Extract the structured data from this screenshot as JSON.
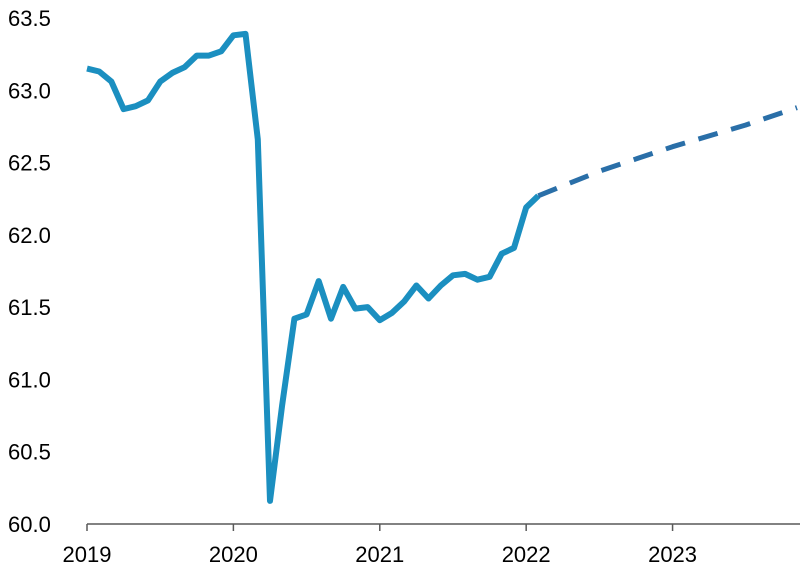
{
  "chart_data": {
    "type": "line",
    "title": "",
    "xlabel": "",
    "ylabel": "",
    "xlim": [
      2019.0,
      2023.85
    ],
    "ylim": [
      60.0,
      63.5
    ],
    "x_ticks": [
      2019,
      2020,
      2021,
      2022,
      2023
    ],
    "x_tick_labels": [
      "2019",
      "2020",
      "2021",
      "2022",
      "2023"
    ],
    "y_ticks": [
      60.0,
      60.5,
      61.0,
      61.5,
      62.0,
      62.5,
      63.0,
      63.5
    ],
    "y_tick_labels": [
      "60.0",
      "60.5",
      "61.0",
      "61.5",
      "62.0",
      "62.5",
      "63.0",
      "63.5"
    ],
    "grid": false,
    "legend": "none",
    "colors": {
      "actual": "#1b8fc0",
      "projection": "#2a6fa8",
      "axis": "#595959"
    },
    "series": [
      {
        "style": "solid",
        "x": [
          2019.0,
          2019.083,
          2019.167,
          2019.25,
          2019.333,
          2019.417,
          2019.5,
          2019.583,
          2019.667,
          2019.75,
          2019.833,
          2019.917,
          2020.0,
          2020.083,
          2020.167,
          2020.25,
          2020.333,
          2020.417,
          2020.5,
          2020.583,
          2020.667,
          2020.75,
          2020.833,
          2020.917,
          2021.0,
          2021.083,
          2021.167,
          2021.25,
          2021.333,
          2021.417,
          2021.5,
          2021.583,
          2021.667,
          2021.75,
          2021.833,
          2021.917,
          2022.0,
          2022.083
        ],
        "values": [
          63.15,
          63.13,
          63.06,
          62.87,
          62.89,
          62.93,
          63.06,
          63.12,
          63.16,
          63.24,
          63.24,
          63.27,
          63.38,
          63.39,
          62.66,
          60.16,
          60.82,
          61.42,
          61.45,
          61.68,
          61.42,
          61.64,
          61.49,
          61.5,
          61.41,
          61.46,
          61.54,
          61.65,
          61.56,
          61.65,
          61.72,
          61.73,
          61.69,
          61.71,
          61.87,
          61.91,
          62.19,
          62.27
        ]
      },
      {
        "style": "dashed",
        "x": [
          2022.083,
          2022.5,
          2023.0,
          2023.5,
          2023.85
        ],
        "values": [
          62.27,
          62.44,
          62.61,
          62.76,
          62.88
        ]
      }
    ]
  }
}
